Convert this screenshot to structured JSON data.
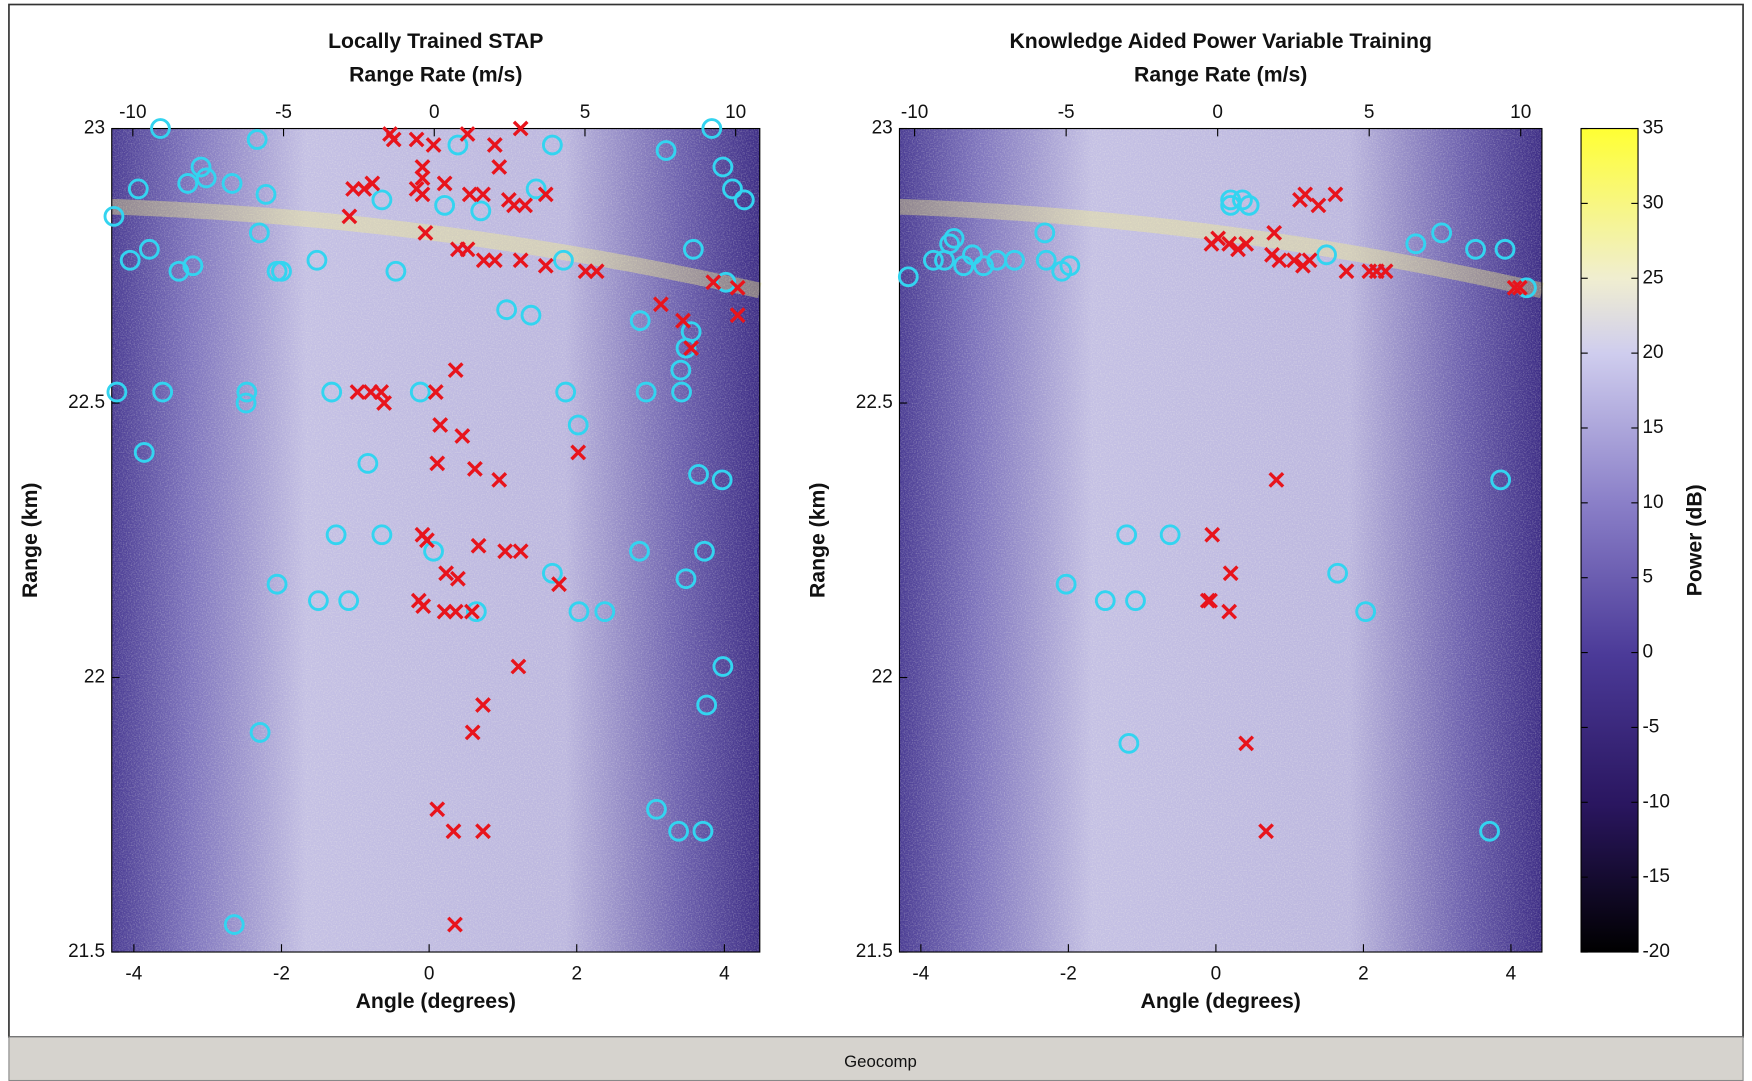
{
  "chart_data": [
    {
      "type": "scatter",
      "title": "Locally Trained STAP",
      "x2label": "Range Rate (m/s)",
      "xlabel": "Angle (degrees)",
      "ylabel": "Range (km)",
      "xlim": [
        -4.3,
        4.48
      ],
      "xticks": [
        -4,
        -2,
        0,
        2,
        4
      ],
      "x2lim": [
        -10.7,
        10.8
      ],
      "x2ticks": [
        -10,
        -5,
        0,
        5,
        10
      ],
      "ylim": [
        21.5,
        23
      ],
      "yticks": [
        21.5,
        22,
        22.5,
        23
      ],
      "series": [
        {
          "marker": "circle",
          "color": "#33d4f0",
          "x": [
            -3.64,
            -2.33,
            -4.27,
            -3.94,
            -3.27,
            -3.09,
            -3.02,
            -2.67,
            -2.21,
            -2.3,
            -3.79,
            -4.05,
            -3.39,
            -3.2,
            -2.06,
            -2.0,
            -1.52,
            -0.45,
            -0.64,
            0.21,
            0.39,
            0.7,
            1.45,
            1.67,
            1.82,
            1.05,
            1.38,
            3.21,
            3.83,
            3.98,
            4.11,
            4.27,
            3.58,
            4.02,
            2.86,
            3.55,
            3.48,
            3.41,
            3.42,
            2.94,
            1.85,
            2.02,
            -1.32,
            -0.12,
            -2.47,
            -2.48,
            -3.61,
            -4.23,
            -3.86,
            -0.83,
            3.65,
            3.97,
            -1.26,
            -0.64,
            0.06,
            2.85,
            3.73,
            -2.06,
            -1.5,
            -1.09,
            0.64,
            1.67,
            2.03,
            2.38,
            3.48,
            3.98,
            3.76,
            -2.29,
            3.08,
            3.38,
            3.71,
            -2.64
          ],
          "values": [
            23,
            22.98,
            22.84,
            22.89,
            22.9,
            22.93,
            22.91,
            22.9,
            22.88,
            22.81,
            22.78,
            22.76,
            22.74,
            22.75,
            22.74,
            22.74,
            22.76,
            22.74,
            22.87,
            22.86,
            22.97,
            22.85,
            22.89,
            22.97,
            22.76,
            22.67,
            22.66,
            22.96,
            23,
            22.93,
            22.89,
            22.87,
            22.78,
            22.72,
            22.65,
            22.63,
            22.6,
            22.56,
            22.52,
            22.52,
            22.52,
            22.46,
            22.52,
            22.52,
            22.52,
            22.5,
            22.52,
            22.52,
            22.41,
            22.39,
            22.37,
            22.36,
            22.26,
            22.26,
            22.23,
            22.23,
            22.23,
            22.17,
            22.14,
            22.14,
            22.12,
            22.19,
            22.12,
            22.12,
            22.18,
            22.02,
            21.95,
            21.9,
            21.76,
            21.72,
            21.72,
            21.55
          ]
        },
        {
          "marker": "x",
          "color": "#e8141c",
          "x": [
            -0.53,
            -0.48,
            -0.17,
            0.06,
            -0.09,
            -0.09,
            -0.17,
            -0.09,
            0.52,
            0.89,
            1.24,
            0.95,
            0.21,
            0.55,
            0.73,
            1.08,
            1.15,
            1.58,
            1.3,
            -1.03,
            -0.88,
            -0.77,
            -1.08,
            -0.05,
            0.39,
            0.52,
            0.74,
            0.89,
            1.24,
            1.58,
            2.12,
            2.27,
            3.14,
            3.44,
            3.55,
            3.85,
            4.18,
            4.18,
            0.36,
            -0.97,
            -0.79,
            -0.65,
            -0.61,
            0.09,
            0.15,
            0.45,
            0.11,
            0.62,
            0.95,
            2.02,
            -0.09,
            -0.03,
            0.67,
            1.03,
            1.24,
            0.23,
            0.39,
            -0.14,
            -0.08,
            0.21,
            0.36,
            0.58,
            1.76,
            1.21,
            0.73,
            0.59,
            0.11,
            0.33,
            0.73,
            0.35
          ],
          "values": [
            22.99,
            22.98,
            22.98,
            22.97,
            22.93,
            22.91,
            22.89,
            22.88,
            22.99,
            22.97,
            23,
            22.93,
            22.9,
            22.88,
            22.88,
            22.87,
            22.86,
            22.88,
            22.86,
            22.89,
            22.89,
            22.9,
            22.84,
            22.81,
            22.78,
            22.78,
            22.76,
            22.76,
            22.76,
            22.75,
            22.74,
            22.74,
            22.68,
            22.65,
            22.6,
            22.72,
            22.71,
            22.66,
            22.56,
            22.52,
            22.52,
            22.52,
            22.5,
            22.52,
            22.46,
            22.44,
            22.39,
            22.38,
            22.36,
            22.41,
            22.26,
            22.25,
            22.24,
            22.23,
            22.23,
            22.19,
            22.18,
            22.14,
            22.13,
            22.12,
            22.12,
            22.12,
            22.17,
            22.02,
            21.95,
            21.9,
            21.76,
            21.72,
            21.72,
            21.55
          ]
        }
      ]
    },
    {
      "type": "scatter",
      "title": "Knowledge Aided Power Variable Training",
      "x2label": "Range Rate (m/s)",
      "xlabel": "Angle (degrees)",
      "ylabel": "Range (km)",
      "xlim": [
        -4.29,
        4.42
      ],
      "xticks": [
        -4,
        -2,
        0,
        2,
        4
      ],
      "x2lim": [
        -10.5,
        10.7
      ],
      "x2ticks": [
        -10,
        -5,
        0,
        5,
        10
      ],
      "ylim": [
        21.5,
        23
      ],
      "yticks": [
        21.5,
        22,
        22.5,
        23
      ],
      "series": [
        {
          "marker": "circle",
          "color": "#33d4f0",
          "x": [
            -4.17,
            -3.83,
            -3.61,
            -3.55,
            -3.68,
            -3.42,
            -3.3,
            -3.15,
            -2.97,
            -2.73,
            -2.32,
            -2.3,
            -2.09,
            -1.98,
            0.2,
            0.2,
            0.36,
            0.45,
            1.5,
            2.71,
            3.06,
            3.52,
            3.92,
            4.21,
            3.86,
            -1.21,
            -0.62,
            -2.03,
            -1.5,
            -1.09,
            1.65,
            2.03,
            -1.18,
            3.71
          ],
          "values": [
            22.73,
            22.76,
            22.79,
            22.8,
            22.76,
            22.75,
            22.77,
            22.75,
            22.76,
            22.76,
            22.81,
            22.76,
            22.74,
            22.75,
            22.87,
            22.86,
            22.87,
            22.86,
            22.77,
            22.79,
            22.81,
            22.78,
            22.78,
            22.71,
            22.36,
            22.26,
            22.26,
            22.17,
            22.14,
            22.14,
            22.19,
            22.12,
            21.88,
            21.72
          ]
        },
        {
          "marker": "x",
          "color": "#e8141c",
          "x": [
            1.14,
            1.21,
            1.39,
            1.62,
            0.03,
            -0.06,
            0.18,
            0.3,
            0.41,
            0.79,
            0.76,
            0.86,
            1.06,
            1.18,
            1.27,
            1.77,
            2.08,
            2.18,
            2.3,
            4.05,
            4.12,
            0.82,
            -0.05,
            0.2,
            -0.11,
            -0.08,
            0.18,
            0.41,
            0.68
          ],
          "values": [
            22.87,
            22.88,
            22.86,
            22.88,
            22.8,
            22.79,
            22.79,
            22.78,
            22.79,
            22.81,
            22.77,
            22.76,
            22.76,
            22.75,
            22.76,
            22.74,
            22.74,
            22.74,
            22.74,
            22.71,
            22.71,
            22.36,
            22.26,
            22.19,
            22.14,
            22.14,
            22.12,
            21.88,
            21.72
          ]
        }
      ],
      "colorbar": {
        "label": "Power (dB)",
        "lim": [
          -20,
          35
        ],
        "ticks": [
          35,
          30,
          25,
          20,
          15,
          10,
          5,
          0,
          -5,
          -10,
          -15,
          -20
        ]
      }
    }
  ],
  "status_bar": {
    "text": "Geocomp"
  }
}
